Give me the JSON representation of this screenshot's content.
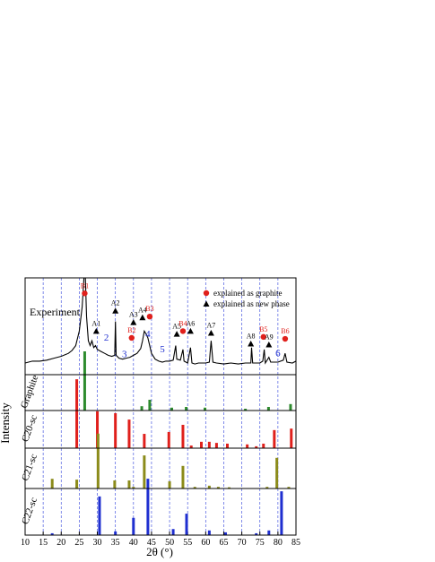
{
  "chart_data": {
    "type": "xrd",
    "xlabel": "2θ (°)",
    "ylabel": "Intensity",
    "xlim": [
      10,
      85
    ],
    "xticks": [
      10,
      15,
      20,
      25,
      30,
      35,
      40,
      45,
      50,
      55,
      60,
      65,
      70,
      75,
      80,
      85
    ],
    "grid": true,
    "experiment": {
      "name": "Experiment",
      "color": "#000000",
      "ylim": [
        0,
        100
      ],
      "x": [
        10,
        12,
        14,
        16,
        18,
        20,
        22,
        23,
        24,
        25,
        25.8,
        26.3,
        26.7,
        27,
        27.5,
        28,
        28.5,
        29,
        29.5,
        30,
        31,
        32,
        33,
        34,
        34.8,
        35,
        35.2,
        36,
        37,
        38,
        39,
        40,
        41,
        42,
        42.5,
        43,
        43.5,
        44,
        44.5,
        45,
        46,
        47,
        48,
        49,
        50,
        51,
        51.7,
        52,
        53,
        53.7,
        54,
        55,
        55.8,
        56.2,
        57,
        58,
        59,
        60,
        61,
        61.5,
        62,
        63,
        65,
        67,
        69,
        71,
        72.5,
        72.7,
        73,
        75,
        75.8,
        76.2,
        76.5,
        77.5,
        78,
        80,
        81.5,
        82,
        82.5,
        84,
        85
      ],
      "values": [
        12,
        14,
        14,
        15,
        17,
        19,
        22,
        25,
        30,
        45,
        70,
        100,
        100,
        60,
        35,
        30,
        35,
        28,
        30,
        26,
        24,
        22,
        20,
        19,
        20,
        55,
        20,
        17,
        16,
        17,
        18,
        20,
        22,
        27,
        35,
        45,
        42,
        38,
        30,
        22,
        16,
        14,
        13,
        14,
        14,
        15,
        30,
        16,
        15,
        26,
        14,
        12,
        28,
        12,
        11,
        12,
        12,
        12,
        13,
        35,
        13,
        12,
        11,
        12,
        11,
        12,
        12,
        28,
        12,
        12,
        14,
        26,
        12,
        18,
        13,
        13,
        15,
        22,
        13,
        12,
        14
      ]
    },
    "legend": [
      {
        "kind": "graphite",
        "label": "explained as graphite"
      },
      {
        "kind": "new-phase",
        "label": "explained as new phase"
      }
    ],
    "annotations": [
      {
        "label": "B1",
        "kind": "graphite",
        "x": 26.5,
        "y": 84
      },
      {
        "label": "A1",
        "kind": "new-phase",
        "x": 29.7,
        "y": 45
      },
      {
        "label": "A2",
        "kind": "new-phase",
        "x": 35,
        "y": 66
      },
      {
        "label": "A3",
        "kind": "new-phase",
        "x": 40,
        "y": 54
      },
      {
        "label": "A4",
        "kind": "new-phase",
        "x": 42.5,
        "y": 59
      },
      {
        "label": "B2",
        "kind": "graphite",
        "x": 39.5,
        "y": 38
      },
      {
        "label": "B3",
        "kind": "graphite",
        "x": 44.5,
        "y": 60
      },
      {
        "label": "A5",
        "kind": "new-phase",
        "x": 52,
        "y": 42
      },
      {
        "label": "B4",
        "kind": "graphite",
        "x": 53.7,
        "y": 45
      },
      {
        "label": "A6",
        "kind": "new-phase",
        "x": 55.8,
        "y": 45
      },
      {
        "label": "A7",
        "kind": "new-phase",
        "x": 61.5,
        "y": 43
      },
      {
        "label": "A8",
        "kind": "new-phase",
        "x": 72.5,
        "y": 32
      },
      {
        "label": "B5",
        "kind": "graphite",
        "x": 76,
        "y": 39
      },
      {
        "label": "A9",
        "kind": "new-phase",
        "x": 77.5,
        "y": 31
      },
      {
        "label": "B6",
        "kind": "graphite",
        "x": 82,
        "y": 37
      },
      {
        "label": "2",
        "kind": "number",
        "x": 32.5,
        "y": 35
      },
      {
        "label": "3",
        "kind": "number",
        "x": 37.5,
        "y": 18
      },
      {
        "label": "4",
        "kind": "number",
        "x": 44,
        "y": 39
      },
      {
        "label": "5",
        "kind": "number",
        "x": 48,
        "y": 23
      },
      {
        "label": "6",
        "kind": "number",
        "x": 80,
        "y": 19
      }
    ],
    "phases": [
      {
        "name": "Graphite",
        "color": "#2e8b2e",
        "ylim": [
          0,
          100
        ],
        "x": [
          26.5,
          42.3,
          44.5,
          50.6,
          54.6,
          59.8,
          71,
          77.4,
          83.5
        ],
        "values": [
          165,
          12,
          30,
          8,
          10,
          8,
          5,
          10,
          18
        ]
      },
      {
        "name": "C20-sc",
        "color": "#e0201c",
        "ylim": [
          0,
          100
        ],
        "x": [
          24.3,
          30,
          35,
          38.8,
          43,
          49.8,
          53.7,
          56,
          58.8,
          61,
          63,
          66,
          71.5,
          74,
          76,
          79,
          83.7
        ],
        "values": [
          183,
          98,
          93,
          76,
          38,
          43,
          62,
          7,
          17,
          17,
          14,
          12,
          10,
          5,
          12,
          48,
          52
        ]
      },
      {
        "name": "C21-sc",
        "color": "#8b8b1a",
        "ylim": [
          0,
          100
        ],
        "x": [
          17.5,
          24.3,
          30.2,
          34.8,
          38.8,
          40,
          43,
          50,
          53.7,
          57,
          61,
          63.5,
          66.5,
          77,
          79.7,
          83
        ],
        "values": [
          24,
          22,
          136,
          20,
          20,
          4,
          82,
          18,
          56,
          4,
          7,
          4,
          3,
          4,
          76,
          4
        ]
      },
      {
        "name": "C22-sc",
        "color": "#1f2fd0",
        "ylim": [
          0,
          100
        ],
        "x": [
          17.5,
          30.6,
          35,
          40,
          44,
          51,
          54.7,
          61,
          65.5,
          74,
          77.5,
          81
        ],
        "values": [
          4,
          83,
          8,
          37,
          121,
          13,
          46,
          10,
          6,
          4,
          10,
          94
        ]
      }
    ]
  }
}
